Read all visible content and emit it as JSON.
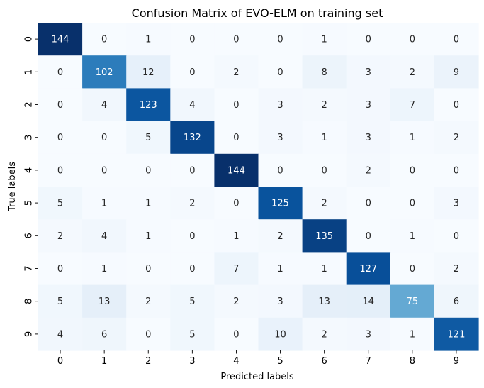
{
  "chart_data": {
    "type": "heatmap",
    "title": "Confusion Matrix of EVO-ELM on training set",
    "xlabel": "Predicted labels",
    "ylabel": "True labels",
    "x_categories": [
      "0",
      "1",
      "2",
      "3",
      "4",
      "5",
      "6",
      "7",
      "8",
      "9"
    ],
    "y_categories": [
      "0",
      "1",
      "2",
      "3",
      "4",
      "5",
      "6",
      "7",
      "8",
      "9"
    ],
    "colormap": "Blues",
    "value_range": [
      0,
      144
    ],
    "colorbar": false,
    "values": [
      [
        144,
        0,
        1,
        0,
        0,
        0,
        1,
        0,
        0,
        0
      ],
      [
        0,
        102,
        12,
        0,
        2,
        0,
        8,
        3,
        2,
        9
      ],
      [
        0,
        4,
        123,
        4,
        0,
        3,
        2,
        3,
        7,
        0
      ],
      [
        0,
        0,
        5,
        132,
        0,
        3,
        1,
        3,
        1,
        2
      ],
      [
        0,
        0,
        0,
        0,
        144,
        0,
        0,
        2,
        0,
        0
      ],
      [
        5,
        1,
        1,
        2,
        0,
        125,
        2,
        0,
        0,
        3
      ],
      [
        2,
        4,
        1,
        0,
        1,
        2,
        135,
        0,
        1,
        0
      ],
      [
        0,
        1,
        0,
        0,
        7,
        1,
        1,
        127,
        0,
        2
      ],
      [
        5,
        13,
        2,
        5,
        2,
        3,
        13,
        14,
        75,
        6
      ],
      [
        4,
        6,
        0,
        5,
        0,
        10,
        2,
        3,
        1,
        121
      ]
    ]
  }
}
